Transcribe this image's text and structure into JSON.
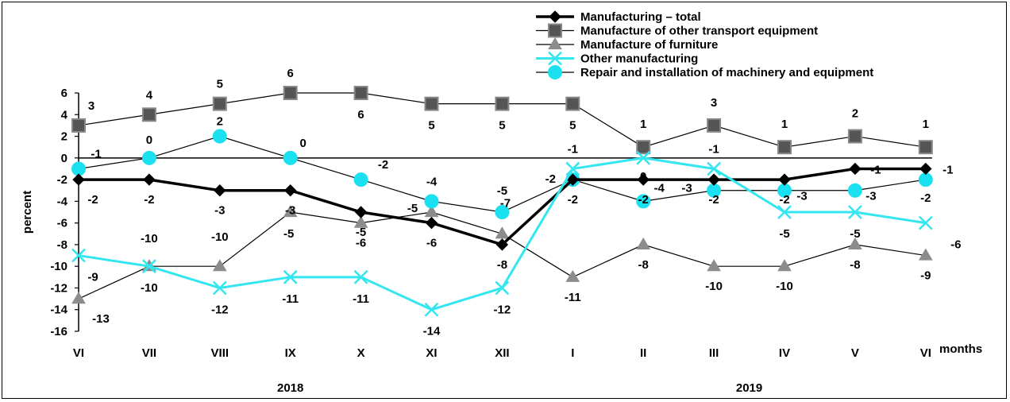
{
  "chart_data": {
    "type": "line",
    "ylabel": "percent",
    "xlabel": "months",
    "ylim": [
      -16,
      6
    ],
    "ytick_step": 2,
    "categories": [
      "VI",
      "VII",
      "VIII",
      "IX",
      "X",
      "XI",
      "XII",
      "I",
      "II",
      "III",
      "IV",
      "V",
      "VI"
    ],
    "years": [
      {
        "label": "2018",
        "from_index": 0,
        "to_index": 6
      },
      {
        "label": "2019",
        "from_index": 7,
        "to_index": 12
      }
    ],
    "legend_position": "top-right",
    "series": [
      {
        "name": "Manufacturing – total",
        "values": [
          -2,
          -2,
          -3,
          -3,
          -5,
          -6,
          -8,
          -2,
          -2,
          -2,
          -2,
          -1,
          -1
        ],
        "color": "#000000",
        "marker": "diamond",
        "line_width": 3.5
      },
      {
        "name": "Manufacture of other transport equipment",
        "values": [
          3,
          4,
          5,
          6,
          6,
          5,
          5,
          5,
          1,
          3,
          1,
          2,
          1
        ],
        "color": "#000000",
        "marker_fill": "#555555",
        "marker": "square",
        "line_width": 1.2
      },
      {
        "name": "Manufacture of furniture",
        "values": [
          -13,
          -10,
          -10,
          -5,
          -6,
          -5,
          -7,
          -11,
          -8,
          -10,
          -10,
          -8,
          -9
        ],
        "color": "#000000",
        "marker_fill": "#8c8c8c",
        "marker": "triangle",
        "line_width": 1.2
      },
      {
        "name": "Other manufacturing",
        "values": [
          -9,
          -10,
          -12,
          -11,
          -11,
          -14,
          -12,
          -1,
          0,
          -1,
          -5,
          -5,
          -6
        ],
        "color": "#33e6ef",
        "marker": "x",
        "line_width": 3
      },
      {
        "name": "Repair and installation of machinery and equipment",
        "values": [
          -1,
          0,
          2,
          0,
          -2,
          -4,
          -5,
          -2,
          -4,
          -3,
          -3,
          -3,
          -2
        ],
        "color": "#000000",
        "marker_fill": "#1ae0f0",
        "marker": "circle",
        "line_width": 1.2
      }
    ]
  }
}
